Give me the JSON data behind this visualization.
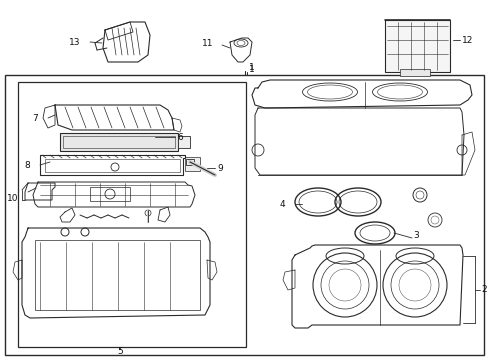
{
  "bg_color": "#ffffff",
  "line_color": "#2a2a2a",
  "label_color": "#111111",
  "figsize": [
    4.89,
    3.6
  ],
  "dpi": 100
}
